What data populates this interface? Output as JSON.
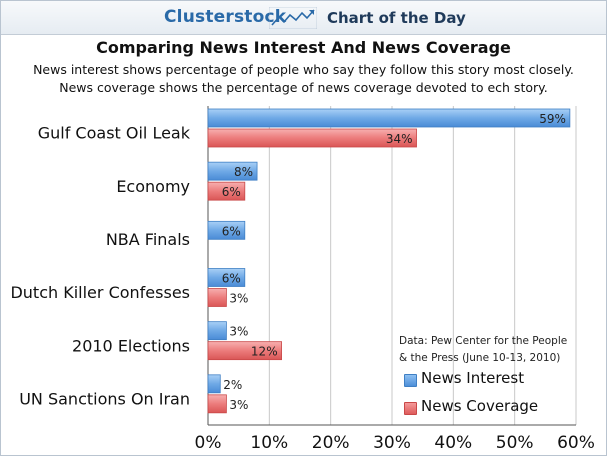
{
  "header": {
    "brand": "Clusterstock",
    "section": "Chart of the Day"
  },
  "chart_data": {
    "type": "bar",
    "orientation": "horizontal",
    "title": "Comparing News Interest And News Coverage",
    "subtitle_lines": [
      "News interest shows percentage of people who say they follow this story most closely.",
      "News coverage shows the percentage of news coverage devoted to ech story."
    ],
    "categories": [
      "Gulf Coast Oil Leak",
      "Economy",
      "NBA Finals",
      "Dutch Killer Confesses",
      "2010 Elections",
      "UN Sanctions On Iran"
    ],
    "series": [
      {
        "name": "News Interest",
        "color": "#5b9be0",
        "values": [
          59,
          8,
          6,
          6,
          3,
          2
        ],
        "labels": [
          "59%",
          "8%",
          "6%",
          "6%",
          "3%",
          "2%"
        ]
      },
      {
        "name": "News Coverage",
        "color": "#e86a6a",
        "values": [
          34,
          6,
          null,
          3,
          12,
          3
        ],
        "labels": [
          "34%",
          "6%",
          null,
          "3%",
          "12%",
          "3%"
        ]
      }
    ],
    "xlim": [
      0,
      60
    ],
    "ticks": [
      0,
      10,
      20,
      30,
      40,
      50,
      60
    ],
    "tick_labels": [
      "0%",
      "10%",
      "20%",
      "30%",
      "40%",
      "50%",
      "60%"
    ],
    "grid": true,
    "legend_position": "bottom-right",
    "source_note": [
      "Data: Pew Center for the People",
      "& the Press (June 10-13, 2010)"
    ]
  }
}
